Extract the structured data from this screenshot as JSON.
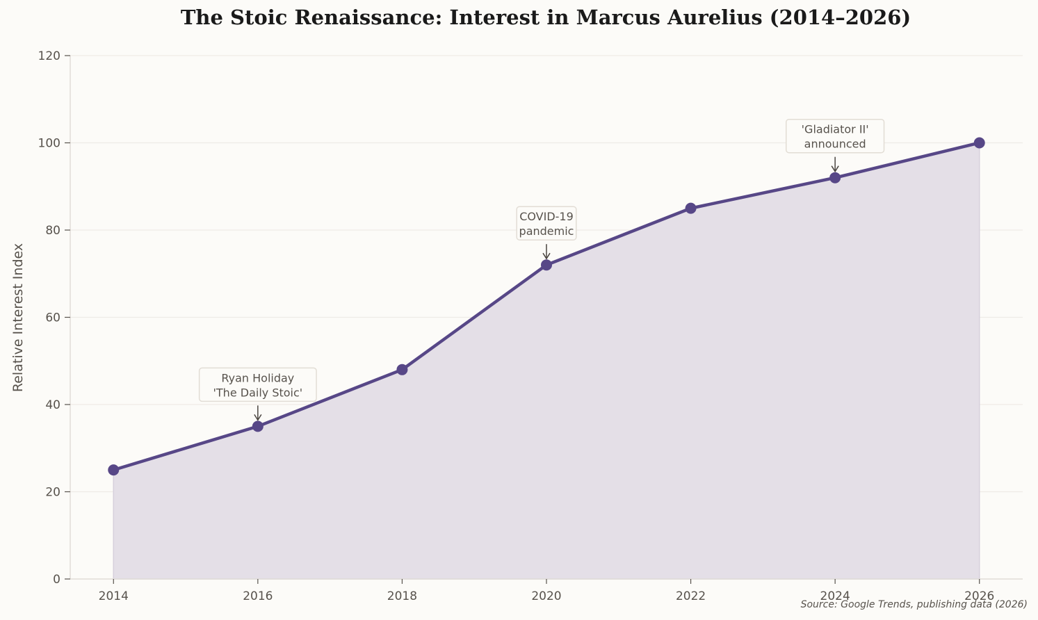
{
  "chart_data": {
    "type": "area",
    "title": "The Stoic Renaissance: Interest in Marcus Aurelius (2014–2026)",
    "xlabel": "",
    "ylabel": "Relative Interest Index",
    "x": [
      2014,
      2016,
      2018,
      2020,
      2022,
      2024,
      2026
    ],
    "series": [
      {
        "name": "Relative Interest Index",
        "values": [
          25,
          35,
          48,
          72,
          85,
          92,
          100
        ],
        "color": "#574787"
      }
    ],
    "xticks": [
      "2014",
      "2016",
      "2018",
      "2020",
      "2022",
      "2024",
      "2026"
    ],
    "yticks": [
      "0",
      "20",
      "40",
      "60",
      "80",
      "100",
      "120"
    ],
    "ylim": [
      0,
      120
    ],
    "xlim": [
      2013.4,
      2026.6
    ],
    "grid": "horizontal",
    "legend": "none",
    "annotations": [
      {
        "x": 2016,
        "y": 35,
        "lines": [
          "Ryan Holiday",
          "'The Daily Stoic'"
        ]
      },
      {
        "x": 2020,
        "y": 72,
        "lines": [
          "COVID-19",
          "pandemic"
        ]
      },
      {
        "x": 2024,
        "y": 92,
        "lines": [
          "'Gladiator II'",
          "announced"
        ]
      }
    ],
    "source": "Source: Google Trends, publishing data (2026)"
  },
  "colors": {
    "line": "#574787",
    "fill": "#e4dfe7",
    "background": "#fcfbf8",
    "grid": "#eeebe6",
    "text": "#57524c"
  }
}
